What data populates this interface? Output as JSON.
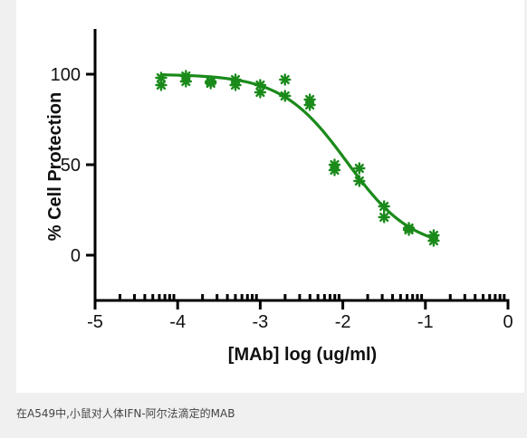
{
  "caption": "在A549中,小鼠对人体IFN-阿尔法滴定的MAB",
  "colors": {
    "series": "#1a8a1a",
    "axis": "#000000",
    "background": "#ffffff",
    "page": "#f0f0f0"
  },
  "chart_data": {
    "type": "scatter",
    "title": "",
    "xlabel": "[MAb] log (ug/ml)",
    "ylabel": "% Cell Protection",
    "xlim": [
      -5,
      0
    ],
    "ylim": [
      -25,
      125
    ],
    "xticks": [
      -5,
      -4,
      -3,
      -2,
      -1,
      0
    ],
    "yticks": [
      0,
      50,
      100
    ],
    "xtick_labels": [
      "-5",
      "-4",
      "-3",
      "-2",
      "-1",
      "0"
    ],
    "ytick_labels": [
      "0",
      "50",
      "100"
    ],
    "grid": false,
    "legend": "none",
    "marker": "asterisk",
    "series": [
      {
        "name": "",
        "points": [
          {
            "x": -4.2,
            "y": 98
          },
          {
            "x": -4.2,
            "y": 94
          },
          {
            "x": -3.9,
            "y": 99
          },
          {
            "x": -3.9,
            "y": 96
          },
          {
            "x": -3.6,
            "y": 96
          },
          {
            "x": -3.6,
            "y": 95
          },
          {
            "x": -3.3,
            "y": 97
          },
          {
            "x": -3.3,
            "y": 94
          },
          {
            "x": -3.0,
            "y": 94
          },
          {
            "x": -3.0,
            "y": 90
          },
          {
            "x": -2.7,
            "y": 97
          },
          {
            "x": -2.7,
            "y": 88
          },
          {
            "x": -2.4,
            "y": 86
          },
          {
            "x": -2.4,
            "y": 83
          },
          {
            "x": -2.1,
            "y": 50
          },
          {
            "x": -2.1,
            "y": 47
          },
          {
            "x": -1.8,
            "y": 48
          },
          {
            "x": -1.8,
            "y": 41
          },
          {
            "x": -1.5,
            "y": 27
          },
          {
            "x": -1.5,
            "y": 21
          },
          {
            "x": -1.2,
            "y": 15
          },
          {
            "x": -1.2,
            "y": 14
          },
          {
            "x": -0.9,
            "y": 11
          },
          {
            "x": -0.9,
            "y": 8
          }
        ]
      }
    ],
    "fit_curve": {
      "model": "4PL",
      "top": 100,
      "bottom": 3,
      "logEC50": -1.95,
      "hill": 1.1,
      "x_range": [
        -4.2,
        -0.9
      ]
    }
  }
}
